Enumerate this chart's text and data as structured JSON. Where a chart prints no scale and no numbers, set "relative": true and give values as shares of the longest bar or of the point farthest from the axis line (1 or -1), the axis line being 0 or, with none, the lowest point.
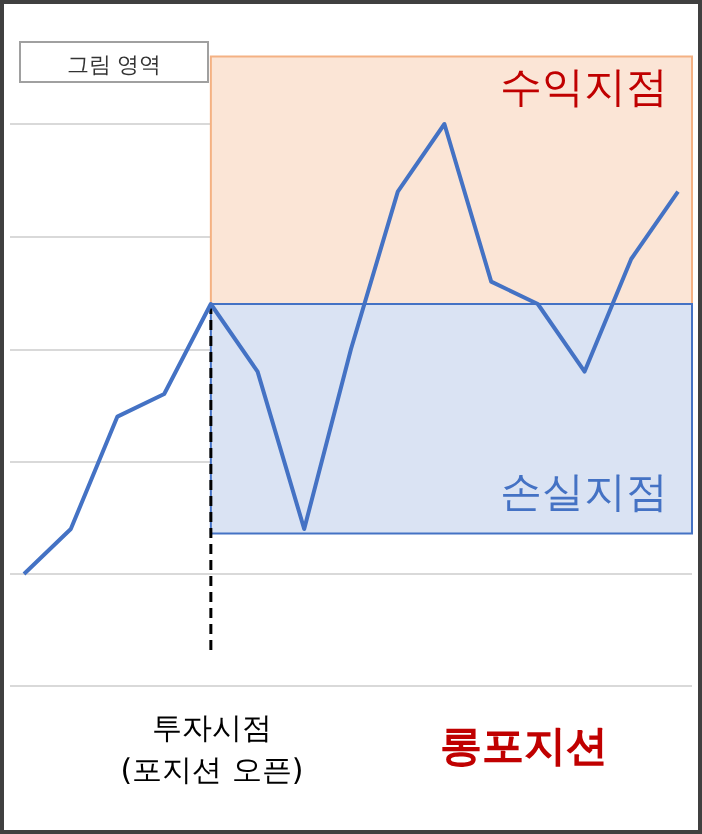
{
  "chart_data": {
    "type": "line",
    "relative": true,
    "categories": [
      null,
      null,
      null,
      null,
      null,
      null,
      null,
      null,
      null,
      null,
      null,
      null,
      null,
      null,
      null
    ],
    "values": [
      0,
      0.1,
      0.35,
      0.4,
      0.6,
      0.45,
      0.1,
      0.5,
      0.85,
      1.0,
      0.65,
      0.6,
      0.45,
      0.7,
      0.85
    ],
    "color": "#4472c4",
    "grid": "y",
    "marker": "none",
    "line_style": "solid",
    "bands": [
      {
        "axis": "y",
        "from": 0.6,
        "to": 1.15,
        "label": "수익지점",
        "color": "#fbe5d6"
      },
      {
        "axis": "y",
        "from": 0.09,
        "to": 0.6,
        "label": "손실지점",
        "color": "#dae3f3"
      }
    ],
    "annotations": [
      "그림 영역",
      "롱포지션",
      "투자시점\n(포지션 오픈)"
    ]
  }
}
